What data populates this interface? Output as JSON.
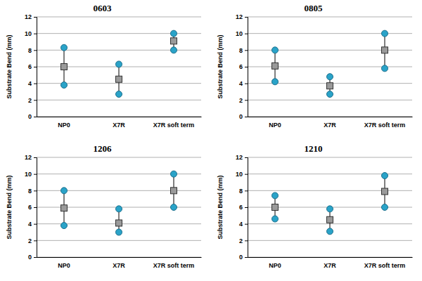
{
  "chart_data": [
    {
      "type": "range",
      "title": "0603",
      "y_label": "Substrate Bend (mm)",
      "categories": [
        "NP0",
        "X7R",
        "X7R soft term"
      ],
      "series": [
        {
          "marker": "circle",
          "color": "#2aa3c8",
          "values": [
            3.8,
            2.7,
            8.0
          ]
        },
        {
          "marker": "square",
          "color": "#9a9a9a",
          "values": [
            6.0,
            4.5,
            9.1
          ]
        },
        {
          "marker": "circle",
          "color": "#2aa3c8",
          "values": [
            8.3,
            6.3,
            10.0
          ]
        }
      ],
      "ylim": [
        0,
        12
      ],
      "yticks": [
        0,
        2,
        4,
        6,
        8,
        10,
        12
      ],
      "grid": true
    },
    {
      "type": "range",
      "title": "0805",
      "y_label": "Substrate Bend (mm)",
      "categories": [
        "NP0",
        "X7R",
        "X7R soft term"
      ],
      "series": [
        {
          "marker": "circle",
          "color": "#2aa3c8",
          "values": [
            4.2,
            2.7,
            5.8
          ]
        },
        {
          "marker": "square",
          "color": "#9a9a9a",
          "values": [
            6.1,
            3.7,
            8.0
          ]
        },
        {
          "marker": "circle",
          "color": "#2aa3c8",
          "values": [
            8.0,
            4.8,
            10.0
          ]
        }
      ],
      "ylim": [
        0,
        12
      ],
      "yticks": [
        0,
        2,
        4,
        6,
        8,
        10,
        12
      ],
      "grid": true
    },
    {
      "type": "range",
      "title": "1206",
      "y_label": "Substrate Bend (mm)",
      "categories": [
        "NP0",
        "X7R",
        "X7R soft term"
      ],
      "series": [
        {
          "marker": "circle",
          "color": "#2aa3c8",
          "values": [
            3.8,
            3.0,
            6.0
          ]
        },
        {
          "marker": "square",
          "color": "#9a9a9a",
          "values": [
            5.9,
            4.1,
            8.0
          ]
        },
        {
          "marker": "circle",
          "color": "#2aa3c8",
          "values": [
            8.0,
            5.8,
            10.0
          ]
        }
      ],
      "ylim": [
        0,
        12
      ],
      "yticks": [
        0,
        2,
        4,
        6,
        8,
        10,
        12
      ],
      "grid": true
    },
    {
      "type": "range",
      "title": "1210",
      "y_label": "Substrate Bend (mm)",
      "categories": [
        "NP0",
        "X7R",
        "X7R soft term"
      ],
      "series": [
        {
          "marker": "circle",
          "color": "#2aa3c8",
          "values": [
            4.6,
            3.1,
            6.0
          ]
        },
        {
          "marker": "square",
          "color": "#9a9a9a",
          "values": [
            6.0,
            4.5,
            7.9
          ]
        },
        {
          "marker": "circle",
          "color": "#2aa3c8",
          "values": [
            7.4,
            5.8,
            9.8
          ]
        }
      ],
      "ylim": [
        0,
        12
      ],
      "yticks": [
        0,
        2,
        4,
        6,
        8,
        10,
        12
      ],
      "grid": true
    }
  ]
}
